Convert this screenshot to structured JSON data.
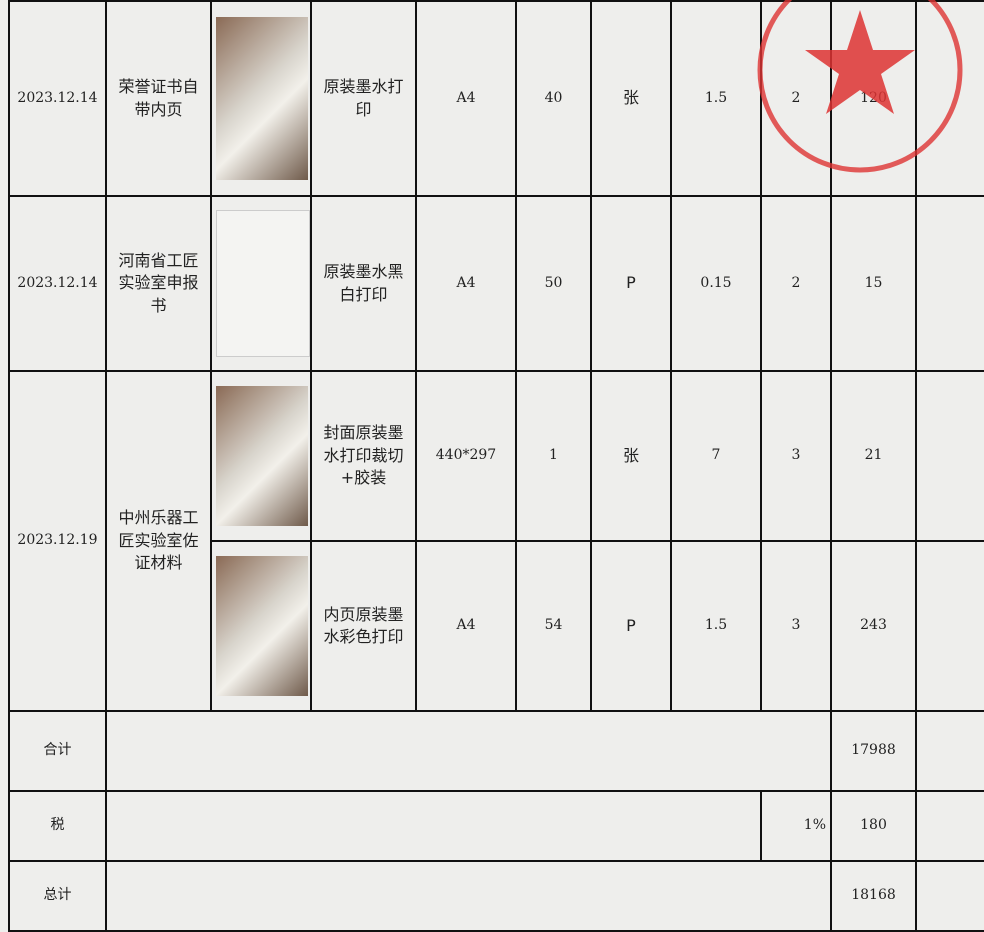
{
  "rows": [
    {
      "date": "2023.12.14",
      "name": "荣誉证书自带内页",
      "items": [
        {
          "process": "原装墨水打印",
          "size": "A4",
          "quantity": 40,
          "unit": "张",
          "price": 1.5,
          "count": 2,
          "amount": 120
        }
      ]
    },
    {
      "date": "2023.12.14",
      "name": "河南省工匠实验室申报书",
      "items": [
        {
          "process": "原装墨水黑白打印",
          "size": "A4",
          "quantity": 50,
          "unit": "P",
          "price": 0.15,
          "count": 2,
          "amount": 15
        }
      ]
    },
    {
      "date": "2023.12.19",
      "name": "中州乐器工匠实验室佐证材料",
      "items": [
        {
          "process": "封面原装墨水打印裁切+胶装",
          "size": "440*297",
          "quantity": 1,
          "unit": "张",
          "price": 7,
          "count": 3,
          "amount": 21
        },
        {
          "process": "内页原装墨水彩色打印",
          "size": "A4",
          "quantity": 54,
          "unit": "P",
          "price": 1.5,
          "count": 3,
          "amount": 243
        }
      ]
    }
  ],
  "totals": {
    "subtotal_label": "合计",
    "subtotal": 17988,
    "tax_label": "税",
    "tax_rate": "1%",
    "tax": 180,
    "total_label": "总计",
    "total": 18168
  }
}
